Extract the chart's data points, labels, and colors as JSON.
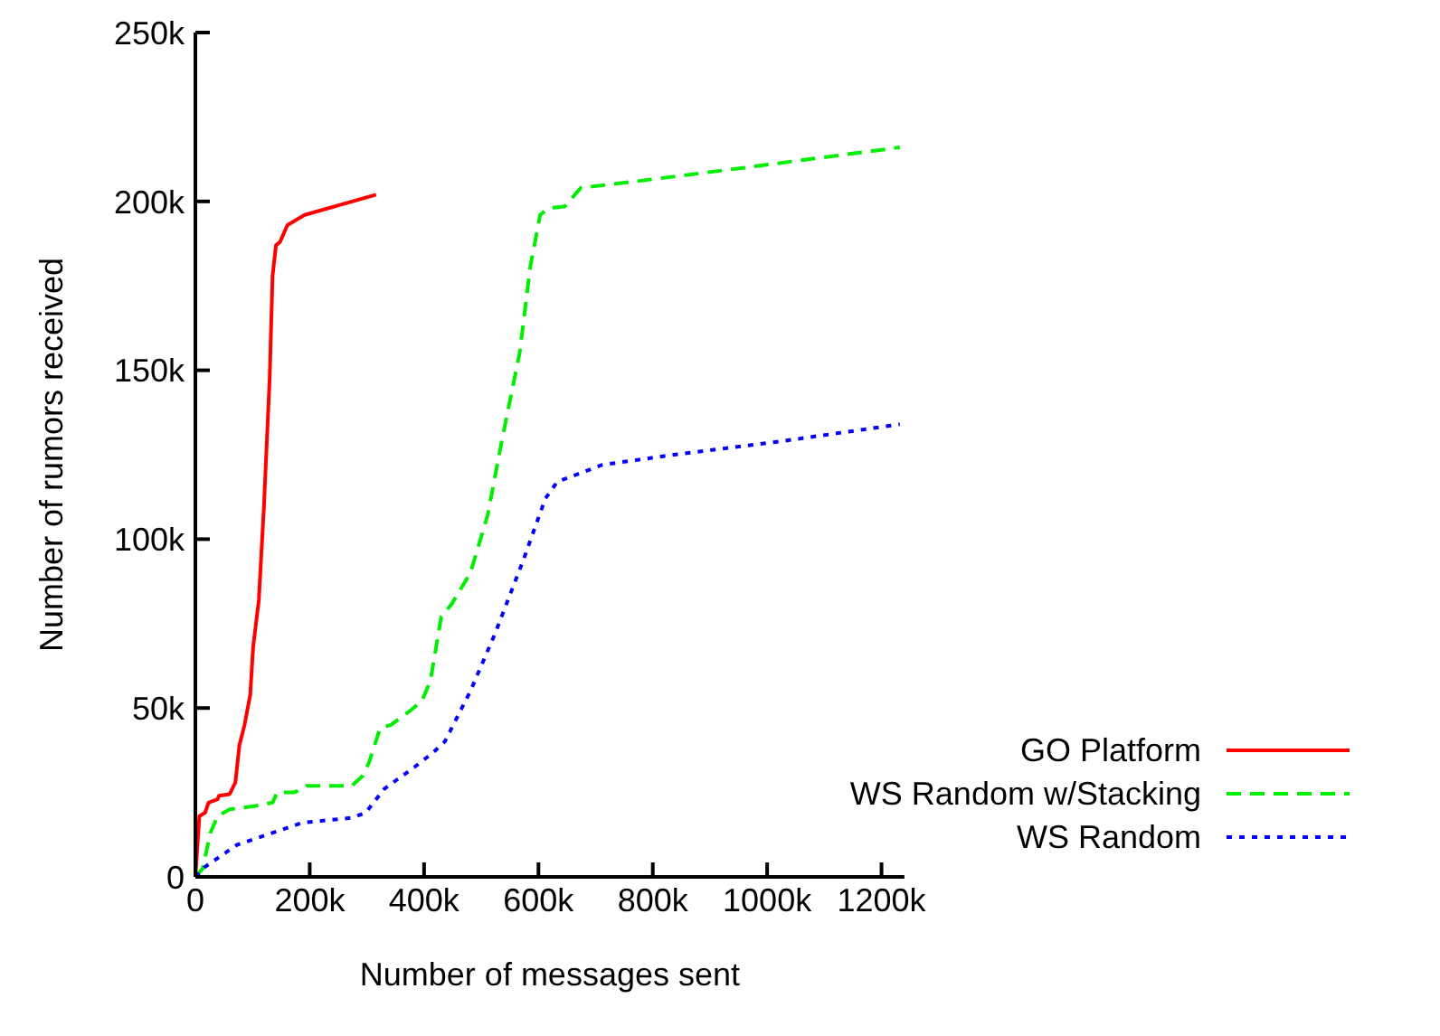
{
  "chart_data": {
    "type": "line",
    "xlabel": "Number of messages sent",
    "ylabel": "Number of rumors received",
    "xlim": [
      0,
      1240000
    ],
    "ylim": [
      0,
      250000
    ],
    "xticks": [
      {
        "value": 0,
        "label": "0"
      },
      {
        "value": 200000,
        "label": "200k"
      },
      {
        "value": 400000,
        "label": "400k"
      },
      {
        "value": 600000,
        "label": "600k"
      },
      {
        "value": 800000,
        "label": "800k"
      },
      {
        "value": 1000000,
        "label": "1000k"
      },
      {
        "value": 1200000,
        "label": "1200k"
      }
    ],
    "yticks": [
      {
        "value": 0,
        "label": "0"
      },
      {
        "value": 50000,
        "label": "50k"
      },
      {
        "value": 100000,
        "label": "100k"
      },
      {
        "value": 150000,
        "label": "150k"
      },
      {
        "value": 200000,
        "label": "200k"
      },
      {
        "value": 250000,
        "label": "250k"
      }
    ],
    "grid": false,
    "legend": "bottom right",
    "marker": "none",
    "series": [
      {
        "name": "GO Platform",
        "color": "#ff0000",
        "line_style": "solid",
        "x": [
          0,
          7000,
          17000,
          23000,
          39000,
          41000,
          60000,
          70000,
          77000,
          86000,
          96000,
          101000,
          111000,
          120000,
          130000,
          135000,
          141000,
          148000,
          161000,
          191000,
          316000
        ],
        "values": [
          0,
          18000,
          19000,
          22000,
          23000,
          24000,
          24500,
          28000,
          39000,
          45000,
          54000,
          68000,
          82000,
          110000,
          148000,
          178000,
          187000,
          188000,
          193000,
          196000,
          202000
        ]
      },
      {
        "name": "WS Random w/Stacking",
        "color": "#00ee00",
        "line_style": "dashed",
        "x": [
          0,
          13000,
          26000,
          39000,
          60000,
          105000,
          135000,
          143000,
          173000,
          195000,
          274000,
          293000,
          304000,
          323000,
          342000,
          374000,
          396000,
          411000,
          430000,
          449000,
          481000,
          511000,
          537000,
          567000,
          586000,
          603000,
          617000,
          646000,
          674000,
          773000,
          961000,
          1232000
        ],
        "values": [
          0,
          2500,
          13000,
          18000,
          20000,
          21000,
          22000,
          25000,
          25000,
          27000,
          27000,
          30000,
          34000,
          44000,
          45000,
          49000,
          52000,
          58000,
          77000,
          81000,
          90000,
          107000,
          130000,
          155000,
          181000,
          196000,
          198000,
          198500,
          204000,
          206000,
          210000,
          216000
        ]
      },
      {
        "name": "WS Random",
        "color": "#0000ff",
        "line_style": "dotted",
        "x": [
          0,
          17000,
          73000,
          143000,
          186000,
          274000,
          298000,
          330000,
          387000,
          417000,
          436000,
          481000,
          524000,
          574000,
          612000,
          633000,
          712000,
          837000,
          1025000,
          1232000
        ],
        "values": [
          0,
          3000,
          9500,
          13500,
          16000,
          17500,
          19000,
          26000,
          33000,
          37000,
          40000,
          55000,
          72000,
          94000,
          112000,
          117000,
          122000,
          125000,
          129000,
          134000
        ]
      }
    ]
  }
}
